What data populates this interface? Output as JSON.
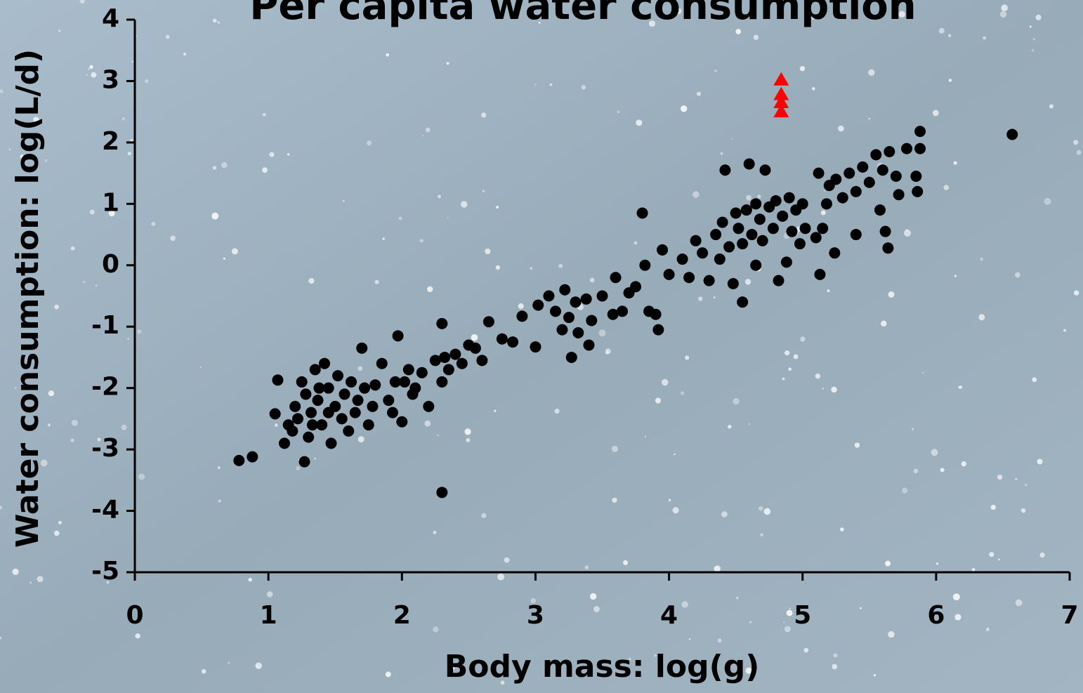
{
  "chart_data": {
    "type": "scatter",
    "title": "Per capita water consumption",
    "x_label": "Body mass: log(g)",
    "y_label": "Water consumption: log(L/d)",
    "xlim": [
      0,
      7
    ],
    "ylim": [
      -5,
      4
    ],
    "xticks": [
      0,
      1,
      2,
      3,
      4,
      5,
      6,
      7
    ],
    "yticks": [
      -5,
      -4,
      -3,
      -2,
      -1,
      0,
      1,
      2,
      3,
      4
    ],
    "grid": false,
    "series": [
      {
        "color": "#000000",
        "marker": "circle",
        "x": [
          0.78,
          0.88,
          1.05,
          1.07,
          1.12,
          1.15,
          1.18,
          1.2,
          1.22,
          1.25,
          1.27,
          1.28,
          1.3,
          1.32,
          1.35,
          1.37,
          1.4,
          1.42,
          1.45,
          1.47,
          1.5,
          1.52,
          1.55,
          1.57,
          1.6,
          1.62,
          1.65,
          1.67,
          1.7,
          1.72,
          1.75,
          1.78,
          1.8,
          1.45,
          1.38,
          1.33,
          1.85,
          1.9,
          1.93,
          1.97,
          2.0,
          2.02,
          2.05,
          2.1,
          2.15,
          2.2,
          2.25,
          2.3,
          2.3,
          2.32,
          2.35,
          2.4,
          2.45,
          2.5,
          2.55,
          2.6,
          2.65,
          2.3,
          1.95,
          2.08,
          2.75,
          2.83,
          2.9,
          3.0,
          3.02,
          3.1,
          3.15,
          3.2,
          3.22,
          3.25,
          3.27,
          3.3,
          3.32,
          3.38,
          3.4,
          3.42,
          3.5,
          3.58,
          3.6,
          3.65,
          3.7,
          3.75,
          3.8,
          3.82,
          3.85,
          3.9,
          3.92,
          3.95,
          4.0,
          4.1,
          4.15,
          4.2,
          4.25,
          4.3,
          4.35,
          4.38,
          4.4,
          4.42,
          4.45,
          4.48,
          4.5,
          4.52,
          4.55,
          4.55,
          4.58,
          4.6,
          4.62,
          4.65,
          4.65,
          4.68,
          4.7,
          4.72,
          4.75,
          4.78,
          4.8,
          4.82,
          4.85,
          4.88,
          4.9,
          4.92,
          4.95,
          4.98,
          5.0,
          5.02,
          5.1,
          5.12,
          5.13,
          5.15,
          5.18,
          5.2,
          5.24,
          5.25,
          5.3,
          5.35,
          5.4,
          5.4,
          5.45,
          5.5,
          5.55,
          5.58,
          5.6,
          5.62,
          5.64,
          5.65,
          5.7,
          5.72,
          5.78,
          5.85,
          5.86,
          5.88,
          5.88,
          6.57
        ],
        "values": [
          -3.18,
          -3.12,
          -2.42,
          -1.87,
          -2.9,
          -2.6,
          -2.7,
          -2.3,
          -2.5,
          -1.9,
          -3.2,
          -2.1,
          -2.8,
          -2.4,
          -1.7,
          -2.2,
          -2.6,
          -1.6,
          -2.0,
          -2.9,
          -2.3,
          -1.8,
          -2.5,
          -2.1,
          -2.7,
          -1.9,
          -2.4,
          -2.2,
          -1.35,
          -2.0,
          -2.6,
          -2.3,
          -1.95,
          -2.4,
          -2.0,
          -2.6,
          -1.6,
          -2.2,
          -2.4,
          -1.15,
          -2.55,
          -1.9,
          -1.7,
          -2.0,
          -1.75,
          -2.3,
          -1.55,
          -0.95,
          -1.9,
          -1.5,
          -1.7,
          -1.45,
          -1.6,
          -1.3,
          -1.35,
          -1.55,
          -0.92,
          -3.7,
          -1.9,
          -2.1,
          -1.2,
          -1.25,
          -0.83,
          -1.33,
          -0.65,
          -0.5,
          -0.75,
          -1.05,
          -0.4,
          -0.85,
          -1.5,
          -0.6,
          -1.1,
          -0.55,
          -1.3,
          -0.9,
          -0.5,
          -0.8,
          -0.2,
          -0.75,
          -0.45,
          -0.35,
          0.85,
          0.0,
          -0.75,
          -0.8,
          -1.05,
          0.25,
          -0.15,
          0.1,
          -0.2,
          0.4,
          0.2,
          -0.25,
          0.5,
          0.1,
          0.7,
          1.55,
          0.3,
          -0.3,
          0.85,
          0.6,
          -0.6,
          0.35,
          0.9,
          1.65,
          0.5,
          0.0,
          1.0,
          0.75,
          0.4,
          1.55,
          0.95,
          0.6,
          1.05,
          -0.25,
          0.8,
          0.05,
          1.1,
          0.55,
          0.9,
          0.35,
          1.0,
          0.6,
          0.45,
          1.5,
          -0.15,
          0.6,
          1.0,
          1.3,
          0.2,
          1.4,
          1.1,
          1.5,
          1.2,
          0.5,
          1.6,
          1.35,
          1.8,
          0.9,
          1.55,
          0.55,
          0.28,
          1.85,
          1.45,
          1.15,
          1.9,
          1.45,
          1.2,
          1.9,
          2.18,
          2.13
        ]
      },
      {
        "color": "#ff0000",
        "marker": "triangle",
        "x": [
          4.84,
          4.84,
          4.84,
          4.84
        ],
        "values": [
          3.02,
          2.78,
          2.65,
          2.5
        ]
      }
    ]
  }
}
